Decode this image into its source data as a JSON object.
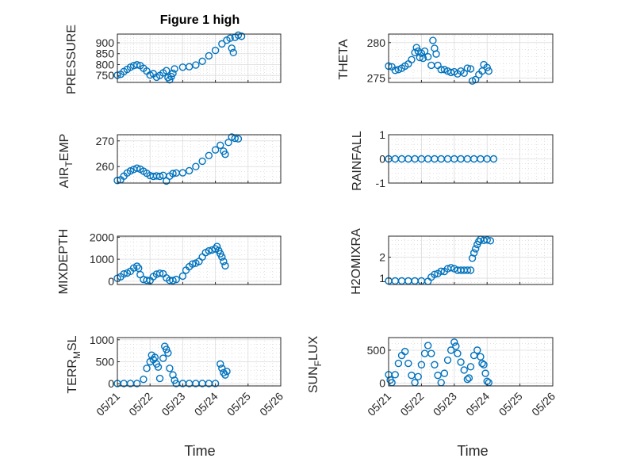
{
  "figure_title": "Figure 1 high",
  "marker_color": "#0072BD",
  "chart_data": [
    {
      "type": "scatter",
      "title": "Figure 1 high",
      "ylabel": "PRESSURE",
      "x_ticks": [
        "05/21",
        "05/22",
        "05/23",
        "05/24",
        "05/25",
        "05/26"
      ],
      "xlim": [
        "05/21",
        "05/26"
      ],
      "ylim": [
        718,
        940
      ],
      "y_ticks": [
        750,
        800,
        850,
        900
      ],
      "points": [
        [
          0,
          751
        ],
        [
          0.1,
          755
        ],
        [
          0.2,
          768
        ],
        [
          0.3,
          778
        ],
        [
          0.4,
          788
        ],
        [
          0.5,
          795
        ],
        [
          0.6,
          799
        ],
        [
          0.7,
          795
        ],
        [
          0.8,
          783
        ],
        [
          0.9,
          770
        ],
        [
          1.0,
          752
        ],
        [
          1.1,
          758
        ],
        [
          1.2,
          742
        ],
        [
          1.3,
          750
        ],
        [
          1.4,
          762
        ],
        [
          1.5,
          772
        ],
        [
          1.55,
          740
        ],
        [
          1.6,
          730
        ],
        [
          1.65,
          745
        ],
        [
          1.7,
          760
        ],
        [
          1.75,
          780
        ],
        [
          2.0,
          788
        ],
        [
          2.2,
          790
        ],
        [
          2.4,
          798
        ],
        [
          2.6,
          815
        ],
        [
          2.8,
          840
        ],
        [
          3.0,
          865
        ],
        [
          3.2,
          895
        ],
        [
          3.35,
          912
        ],
        [
          3.45,
          921
        ],
        [
          3.5,
          875
        ],
        [
          3.55,
          855
        ],
        [
          3.6,
          925
        ],
        [
          3.7,
          935
        ],
        [
          3.8,
          930
        ]
      ]
    },
    {
      "type": "scatter",
      "ylabel": "THETA",
      "x_ticks": [
        "05/21",
        "05/22",
        "05/23",
        "05/24",
        "05/25",
        "05/26"
      ],
      "xlim": [
        "05/21",
        "05/26"
      ],
      "ylim": [
        274.4,
        281.2
      ],
      "y_ticks": [
        275,
        280
      ],
      "points": [
        [
          0,
          276.7
        ],
        [
          0.1,
          276.6
        ],
        [
          0.2,
          276.1
        ],
        [
          0.3,
          276.2
        ],
        [
          0.4,
          276.4
        ],
        [
          0.5,
          276.7
        ],
        [
          0.6,
          277.0
        ],
        [
          0.7,
          277.6
        ],
        [
          0.8,
          278.6
        ],
        [
          0.85,
          279.3
        ],
        [
          0.9,
          278.8
        ],
        [
          0.95,
          277.9
        ],
        [
          1.0,
          278.5
        ],
        [
          1.05,
          277.8
        ],
        [
          1.1,
          278.8
        ],
        [
          1.2,
          278.0
        ],
        [
          1.3,
          276.8
        ],
        [
          1.35,
          280.3
        ],
        [
          1.4,
          279.2
        ],
        [
          1.45,
          278.4
        ],
        [
          1.5,
          276.8
        ],
        [
          1.6,
          276.2
        ],
        [
          1.7,
          276.2
        ],
        [
          1.8,
          276.0
        ],
        [
          1.9,
          275.8
        ],
        [
          2.0,
          275.9
        ],
        [
          2.1,
          275.6
        ],
        [
          2.2,
          276.0
        ],
        [
          2.3,
          275.7
        ],
        [
          2.4,
          276.4
        ],
        [
          2.5,
          276.3
        ],
        [
          2.55,
          274.6
        ],
        [
          2.65,
          274.8
        ],
        [
          2.75,
          275.5
        ],
        [
          2.85,
          276.0
        ],
        [
          2.9,
          276.9
        ],
        [
          3.0,
          276.5
        ],
        [
          3.05,
          276.0
        ]
      ]
    },
    {
      "type": "scatter",
      "ylabel": "AIR_TEMP",
      "x_ticks": [
        "05/21",
        "05/22",
        "05/23",
        "05/24",
        "05/25",
        "05/26"
      ],
      "xlim": [
        "05/21",
        "05/26"
      ],
      "ylim": [
        253.6,
        272.4
      ],
      "y_ticks": [
        260,
        270
      ],
      "points": [
        [
          0,
          254.6
        ],
        [
          0.1,
          254.9
        ],
        [
          0.2,
          256.3
        ],
        [
          0.3,
          257.5
        ],
        [
          0.4,
          258.3
        ],
        [
          0.5,
          258.9
        ],
        [
          0.6,
          259.4
        ],
        [
          0.7,
          259.0
        ],
        [
          0.8,
          258.2
        ],
        [
          0.9,
          257.4
        ],
        [
          1.0,
          256.5
        ],
        [
          1.1,
          256.2
        ],
        [
          1.2,
          256.4
        ],
        [
          1.3,
          256.2
        ],
        [
          1.4,
          256.6
        ],
        [
          1.5,
          254.4
        ],
        [
          1.6,
          256.3
        ],
        [
          1.7,
          257.3
        ],
        [
          1.8,
          257.5
        ],
        [
          2.0,
          257.6
        ],
        [
          2.2,
          258.4
        ],
        [
          2.4,
          260.0
        ],
        [
          2.6,
          262.1
        ],
        [
          2.8,
          264.3
        ],
        [
          3.0,
          266.5
        ],
        [
          3.15,
          268.3
        ],
        [
          3.25,
          266.0
        ],
        [
          3.3,
          264.8
        ],
        [
          3.4,
          269.4
        ],
        [
          3.5,
          271.5
        ],
        [
          3.6,
          271.0
        ],
        [
          3.7,
          270.8
        ]
      ]
    },
    {
      "type": "scatter",
      "ylabel": "RAINFALL",
      "x_ticks": [
        "05/21",
        "05/22",
        "05/23",
        "05/24",
        "05/25",
        "05/26"
      ],
      "xlim": [
        "05/21",
        "05/26"
      ],
      "ylim": [
        -1,
        1
      ],
      "y_ticks": [
        -1,
        0,
        1
      ],
      "points": [
        [
          0,
          0
        ],
        [
          0.2,
          0
        ],
        [
          0.4,
          0
        ],
        [
          0.6,
          0
        ],
        [
          0.8,
          0
        ],
        [
          1.0,
          0
        ],
        [
          1.2,
          0
        ],
        [
          1.4,
          0
        ],
        [
          1.6,
          0
        ],
        [
          1.8,
          0
        ],
        [
          2.0,
          0
        ],
        [
          2.2,
          0
        ],
        [
          2.4,
          0
        ],
        [
          2.6,
          0
        ],
        [
          2.8,
          0
        ],
        [
          3.0,
          0
        ],
        [
          3.2,
          0
        ]
      ]
    },
    {
      "type": "scatter",
      "ylabel": "MIXDEPTH",
      "x_ticks": [
        "05/21",
        "05/22",
        "05/23",
        "05/24",
        "05/25",
        "05/26"
      ],
      "xlim": [
        "05/21",
        "05/26"
      ],
      "ylim": [
        -150,
        2050
      ],
      "y_ticks": [
        0,
        1000,
        2000
      ],
      "points": [
        [
          0,
          130
        ],
        [
          0.1,
          200
        ],
        [
          0.2,
          330
        ],
        [
          0.3,
          370
        ],
        [
          0.4,
          450
        ],
        [
          0.5,
          600
        ],
        [
          0.6,
          680
        ],
        [
          0.65,
          590
        ],
        [
          0.7,
          300
        ],
        [
          0.8,
          80
        ],
        [
          0.9,
          40
        ],
        [
          1.0,
          30
        ],
        [
          1.1,
          210
        ],
        [
          1.2,
          320
        ],
        [
          1.3,
          360
        ],
        [
          1.4,
          340
        ],
        [
          1.5,
          150
        ],
        [
          1.6,
          40
        ],
        [
          1.7,
          30
        ],
        [
          1.8,
          80
        ],
        [
          2.0,
          230
        ],
        [
          2.1,
          500
        ],
        [
          2.2,
          660
        ],
        [
          2.3,
          780
        ],
        [
          2.4,
          820
        ],
        [
          2.5,
          900
        ],
        [
          2.6,
          1100
        ],
        [
          2.7,
          1300
        ],
        [
          2.8,
          1380
        ],
        [
          2.9,
          1420
        ],
        [
          3.0,
          1470
        ],
        [
          3.05,
          1580
        ],
        [
          3.1,
          1400
        ],
        [
          3.15,
          1250
        ],
        [
          3.2,
          1100
        ],
        [
          3.25,
          900
        ],
        [
          3.3,
          700
        ]
      ]
    },
    {
      "type": "scatter",
      "ylabel": "H2OMIXRA",
      "x_ticks": [
        "05/21",
        "05/22",
        "05/23",
        "05/24",
        "05/25",
        "05/26"
      ],
      "xlim": [
        "05/21",
        "05/26"
      ],
      "ylim": [
        0.7,
        3.0
      ],
      "y_ticks": [
        1,
        2
      ],
      "points": [
        [
          0,
          0.87
        ],
        [
          0.2,
          0.87
        ],
        [
          0.4,
          0.87
        ],
        [
          0.6,
          0.87
        ],
        [
          0.8,
          0.87
        ],
        [
          1.0,
          0.87
        ],
        [
          1.2,
          0.85
        ],
        [
          1.3,
          1.05
        ],
        [
          1.4,
          1.18
        ],
        [
          1.5,
          1.22
        ],
        [
          1.6,
          1.33
        ],
        [
          1.7,
          1.32
        ],
        [
          1.8,
          1.45
        ],
        [
          1.9,
          1.5
        ],
        [
          2.0,
          1.45
        ],
        [
          2.1,
          1.38
        ],
        [
          2.2,
          1.38
        ],
        [
          2.3,
          1.38
        ],
        [
          2.4,
          1.38
        ],
        [
          2.5,
          1.38
        ],
        [
          2.55,
          1.95
        ],
        [
          2.6,
          2.2
        ],
        [
          2.65,
          2.4
        ],
        [
          2.7,
          2.6
        ],
        [
          2.75,
          2.75
        ],
        [
          2.8,
          2.85
        ],
        [
          2.9,
          2.8
        ],
        [
          3.0,
          2.82
        ],
        [
          3.1,
          2.78
        ]
      ]
    },
    {
      "type": "scatter",
      "ylabel": "TERR_MSL",
      "x_ticks": [
        "05/21",
        "05/22",
        "05/23",
        "05/24",
        "05/25",
        "05/26"
      ],
      "xlim": [
        "05/21",
        "05/26"
      ],
      "ylim": [
        -50,
        1050
      ],
      "y_ticks": [
        0,
        500,
        1000
      ],
      "points": [
        [
          0,
          5
        ],
        [
          0.2,
          5
        ],
        [
          0.4,
          5
        ],
        [
          0.6,
          5
        ],
        [
          0.8,
          100
        ],
        [
          0.9,
          350
        ],
        [
          1.0,
          500
        ],
        [
          1.05,
          650
        ],
        [
          1.1,
          550
        ],
        [
          1.15,
          600
        ],
        [
          1.2,
          450
        ],
        [
          1.25,
          380
        ],
        [
          1.3,
          120
        ],
        [
          1.4,
          580
        ],
        [
          1.45,
          850
        ],
        [
          1.5,
          780
        ],
        [
          1.55,
          700
        ],
        [
          1.6,
          350
        ],
        [
          1.7,
          200
        ],
        [
          1.75,
          80
        ],
        [
          1.8,
          5
        ],
        [
          2.0,
          5
        ],
        [
          2.2,
          5
        ],
        [
          2.4,
          5
        ],
        [
          2.6,
          5
        ],
        [
          2.8,
          5
        ],
        [
          3.0,
          5
        ],
        [
          3.15,
          450
        ],
        [
          3.2,
          350
        ],
        [
          3.25,
          250
        ],
        [
          3.3,
          200
        ],
        [
          3.35,
          280
        ]
      ]
    },
    {
      "type": "scatter",
      "ylabel": "SUN_FLUX",
      "x_ticks": [
        "05/21",
        "05/22",
        "05/23",
        "05/24",
        "05/25",
        "05/26"
      ],
      "xlim": [
        "05/21",
        "05/26"
      ],
      "ylim": [
        -40,
        690
      ],
      "y_ticks": [
        0,
        500
      ],
      "points": [
        [
          0,
          130
        ],
        [
          0.05,
          50
        ],
        [
          0.1,
          10
        ],
        [
          0.2,
          130
        ],
        [
          0.3,
          300
        ],
        [
          0.4,
          420
        ],
        [
          0.5,
          480
        ],
        [
          0.6,
          300
        ],
        [
          0.7,
          120
        ],
        [
          0.8,
          10
        ],
        [
          0.9,
          100
        ],
        [
          1.0,
          280
        ],
        [
          1.1,
          450
        ],
        [
          1.2,
          570
        ],
        [
          1.3,
          450
        ],
        [
          1.4,
          280
        ],
        [
          1.5,
          120
        ],
        [
          1.6,
          10
        ],
        [
          1.7,
          150
        ],
        [
          1.8,
          350
        ],
        [
          1.9,
          500
        ],
        [
          2.0,
          620
        ],
        [
          2.05,
          560
        ],
        [
          2.1,
          450
        ],
        [
          2.2,
          320
        ],
        [
          2.3,
          200
        ],
        [
          2.4,
          60
        ],
        [
          2.45,
          80
        ],
        [
          2.5,
          250
        ],
        [
          2.6,
          420
        ],
        [
          2.7,
          500
        ],
        [
          2.8,
          400
        ],
        [
          2.85,
          300
        ],
        [
          2.9,
          280
        ],
        [
          2.95,
          150
        ],
        [
          3.0,
          30
        ],
        [
          3.05,
          10
        ]
      ]
    }
  ],
  "axis_labels": {
    "x_time": "Time",
    "pressure": "PRESSURE",
    "theta": "THETA",
    "air": "AIR",
    "air_sub": "T",
    "air_rest": "EMP",
    "rainfall": "RAINFALL",
    "mixdepth": "MIXDEPTH",
    "h2o": "H2OMIXRA",
    "terr": "TERR",
    "terr_sub": "M",
    "terr_rest": "SL",
    "sun": "SUN",
    "sun_sub": "F",
    "sun_rest": "LUX"
  }
}
